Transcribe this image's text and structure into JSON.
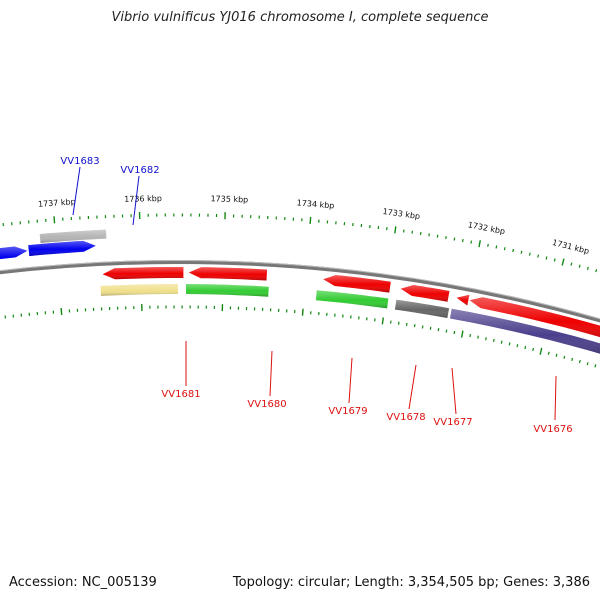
{
  "title": "Vibrio vulnificus YJ016 chromosome I, complete sequence",
  "footer": {
    "accession": "Accession: NC_005139",
    "summary": "Topology: circular; Length: 3,354,505 bp; Genes: 3,386"
  },
  "colors": {
    "forward_label": "#1010cc",
    "reverse_label": "#dd1010",
    "tick": "#118811",
    "backbone": "#777777"
  },
  "ticks": [
    "1737 kbp",
    "1736 kbp",
    "1735 kbp",
    "1734 kbp",
    "1733 kbp",
    "1732 kbp",
    "1731 kbp"
  ],
  "genes": [
    {
      "label": "VV1683",
      "strand": "forward",
      "color": "#0000ee"
    },
    {
      "label": "VV1682",
      "strand": "forward",
      "color": "#0000ee"
    },
    {
      "label": "VV1681",
      "strand": "reverse",
      "color": "#ee0000"
    },
    {
      "label": "VV1680",
      "strand": "reverse",
      "color": "#ee0000"
    },
    {
      "label": "VV1679",
      "strand": "reverse",
      "color": "#ee0000"
    },
    {
      "label": "VV1678",
      "strand": "reverse",
      "color": "#ee0000"
    },
    {
      "label": "VV1677",
      "strand": "reverse",
      "color": "#ee0000"
    },
    {
      "label": "VV1676",
      "strand": "reverse",
      "color": "#ee0000"
    }
  ],
  "features": [
    {
      "strand": "forward",
      "color": "#b4b4b4"
    },
    {
      "strand": "reverse",
      "color": "#f0e08c"
    },
    {
      "strand": "reverse",
      "color": "#33cc33"
    },
    {
      "strand": "reverse",
      "color": "#33cc33"
    },
    {
      "strand": "reverse",
      "color": "#666666"
    },
    {
      "strand": "reverse",
      "color": "#4a3f8c"
    }
  ]
}
